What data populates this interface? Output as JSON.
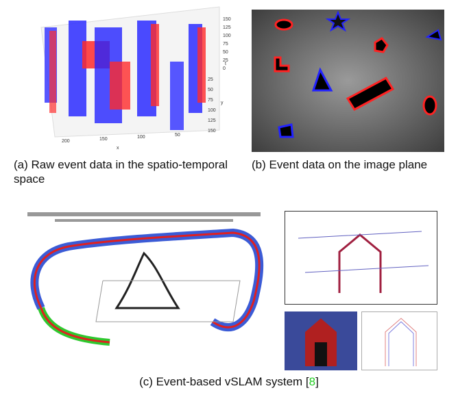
{
  "figure": {
    "panel_a": {
      "caption": "(a) Raw event data in the spatio-temporal space",
      "x_label": "x",
      "y_label": "y",
      "t_label": "t",
      "x_ticks": [
        "200",
        "150",
        "100",
        "50"
      ],
      "t_ticks": [
        "150",
        "125",
        "100",
        "75",
        "50",
        "25",
        "0"
      ],
      "y_ticks": [
        "25",
        "50",
        "75",
        "100",
        "125",
        "150"
      ]
    },
    "panel_b": {
      "caption": "(b) Event data on the image plane"
    },
    "panel_c": {
      "caption": [
        "(c) Event-based vSLAM system [",
        "8",
        "]"
      ]
    }
  }
}
